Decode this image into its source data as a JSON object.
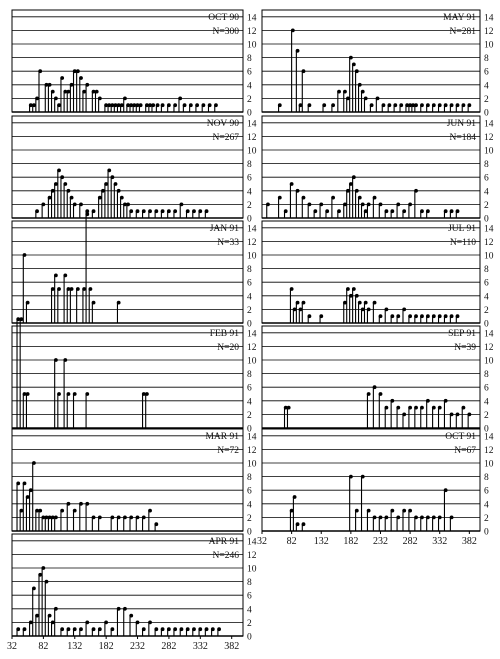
{
  "chart_data": {
    "type": "bar",
    "style": "lollipop",
    "y_ticks": [
      0,
      2,
      4,
      6,
      8,
      10,
      12,
      14
    ],
    "ylim": [
      0,
      15
    ],
    "x_ticks": [
      32,
      82,
      132,
      182,
      232,
      282,
      332,
      382
    ],
    "xlim": [
      32,
      400
    ],
    "grid": true,
    "panels": [
      {
        "title": "OCT 90",
        "n_label": "N=300",
        "column": "left",
        "row": 0,
        "x": [
          60,
          65,
          70,
          75,
          85,
          90,
          95,
          100,
          105,
          110,
          115,
          120,
          125,
          130,
          135,
          140,
          145,
          150,
          160,
          165,
          170,
          180,
          185,
          190,
          195,
          200,
          205,
          210,
          215,
          220,
          225,
          230,
          235,
          245,
          250,
          255,
          262,
          270,
          280,
          290,
          298,
          305,
          315,
          325,
          335,
          345,
          355
        ],
        "y": [
          1,
          1,
          2,
          6,
          4,
          4,
          3,
          2,
          1,
          5,
          3,
          3,
          4,
          6,
          6,
          5,
          3,
          4,
          3,
          3,
          2,
          1,
          1,
          1,
          1,
          1,
          1,
          2,
          1,
          1,
          1,
          1,
          1,
          1,
          1,
          1,
          1,
          1,
          1,
          1,
          2,
          1,
          1,
          1,
          1,
          1,
          1
        ]
      },
      {
        "title": "MAY 91",
        "n_label": "N=281",
        "column": "right",
        "row": 0,
        "x": [
          60,
          82,
          90,
          95,
          100,
          110,
          135,
          150,
          160,
          170,
          175,
          180,
          185,
          190,
          195,
          200,
          205,
          215,
          225,
          235,
          245,
          255,
          265,
          275,
          280,
          285,
          290,
          300,
          310,
          320,
          330,
          340,
          350,
          360,
          370,
          380
        ],
        "y": [
          1,
          12,
          9,
          1,
          6,
          1,
          1,
          1,
          3,
          3,
          2,
          8,
          7,
          6,
          4,
          3,
          2,
          1,
          2,
          1,
          1,
          1,
          1,
          1,
          1,
          1,
          1,
          1,
          1,
          1,
          1,
          1,
          1,
          1,
          1,
          1
        ]
      },
      {
        "title": "NOV 90",
        "n_label": "N=267",
        "column": "left",
        "row": 1,
        "x": [
          70,
          80,
          90,
          95,
          100,
          105,
          110,
          115,
          120,
          125,
          130,
          140,
          150,
          160,
          170,
          175,
          180,
          185,
          190,
          195,
          200,
          205,
          210,
          215,
          220,
          230,
          240,
          250,
          260,
          270,
          280,
          290,
          300,
          310,
          320,
          330,
          340
        ],
        "y": [
          1,
          2,
          3,
          4,
          5,
          7,
          6,
          5,
          4,
          3,
          2,
          2,
          1,
          1,
          3,
          4,
          5,
          7,
          6,
          5,
          4,
          3,
          2,
          2,
          1,
          1,
          1,
          1,
          1,
          1,
          1,
          1,
          2,
          1,
          1,
          1,
          1
        ]
      },
      {
        "title": "JUN 91",
        "n_label": "N=184",
        "column": "right",
        "row": 1,
        "x": [
          40,
          60,
          70,
          80,
          90,
          100,
          110,
          120,
          130,
          140,
          150,
          160,
          170,
          175,
          180,
          185,
          190,
          195,
          200,
          205,
          210,
          220,
          230,
          240,
          250,
          260,
          270,
          280,
          290,
          300,
          310,
          340,
          350,
          360
        ],
        "y": [
          2,
          3,
          1,
          5,
          4,
          3,
          2,
          1,
          2,
          1,
          3,
          1,
          2,
          4,
          5,
          6,
          4,
          3,
          2,
          1,
          2,
          3,
          2,
          1,
          1,
          2,
          1,
          2,
          4,
          1,
          1,
          1,
          1,
          1
        ]
      },
      {
        "title": "JAN 91",
        "n_label": "N=33",
        "column": "left",
        "row": 2,
        "x": [
          50,
          55,
          95,
          100,
          105,
          115,
          120,
          125,
          135,
          145,
          150,
          155,
          160,
          200
        ],
        "y": [
          10,
          3,
          5,
          7,
          5,
          7,
          5,
          5,
          5,
          5,
          16,
          5,
          3,
          3
        ]
      },
      {
        "title": "JUL 91",
        "n_label": "N=110",
        "column": "right",
        "row": 2,
        "x": [
          80,
          85,
          90,
          95,
          100,
          110,
          130,
          170,
          175,
          180,
          185,
          190,
          195,
          200,
          205,
          210,
          220,
          230,
          240,
          250,
          260,
          270,
          280,
          290,
          300,
          310,
          320,
          330,
          340,
          350,
          360
        ],
        "y": [
          5,
          2,
          3,
          2,
          3,
          1,
          1,
          3,
          5,
          4,
          5,
          4,
          3,
          2,
          3,
          2,
          3,
          1,
          2,
          1,
          1,
          2,
          1,
          1,
          1,
          1,
          1,
          1,
          1,
          1,
          1
        ]
      },
      {
        "title": "FEB 91",
        "n_label": "N=20",
        "column": "left",
        "row": 3,
        "x": [
          40,
          45,
          50,
          55,
          100,
          105,
          115,
          120,
          130,
          150,
          240,
          245
        ],
        "y": [
          16,
          16,
          5,
          5,
          10,
          5,
          10,
          5,
          5,
          5,
          5,
          5
        ]
      },
      {
        "title": "SEP 91",
        "n_label": "N=39",
        "column": "right",
        "row": 3,
        "x": [
          70,
          75,
          210,
          220,
          230,
          240,
          250,
          260,
          270,
          280,
          290,
          300,
          310,
          320,
          330,
          340,
          350,
          360,
          370,
          380
        ],
        "y": [
          3,
          3,
          5,
          6,
          5,
          3,
          4,
          3,
          2,
          3,
          3,
          3,
          4,
          3,
          3,
          4,
          2,
          2,
          3,
          2
        ]
      },
      {
        "title": "MAR 91",
        "n_label": "N=72",
        "column": "left",
        "row": 4,
        "x": [
          40,
          45,
          50,
          55,
          60,
          65,
          70,
          75,
          80,
          85,
          90,
          95,
          100,
          110,
          120,
          130,
          140,
          150,
          160,
          170,
          190,
          200,
          210,
          220,
          230,
          240,
          250,
          260
        ],
        "y": [
          7,
          3,
          7,
          5,
          6,
          10,
          3,
          3,
          2,
          2,
          2,
          2,
          2,
          3,
          4,
          3,
          4,
          4,
          2,
          2,
          2,
          2,
          2,
          2,
          2,
          2,
          3,
          1
        ]
      },
      {
        "title": "OCT 91",
        "n_label": "N=67",
        "column": "right",
        "row": 4,
        "x": [
          80,
          85,
          90,
          100,
          180,
          190,
          200,
          210,
          220,
          230,
          240,
          250,
          260,
          270,
          280,
          290,
          300,
          310,
          320,
          330,
          340,
          350
        ],
        "y": [
          3,
          5,
          1,
          1,
          8,
          3,
          8,
          3,
          2,
          2,
          2,
          3,
          2,
          3,
          3,
          2,
          2,
          2,
          2,
          2,
          6,
          2
        ]
      },
      {
        "title": "APR 91",
        "n_label": "N=246",
        "column": "left",
        "row": 5,
        "x": [
          40,
          50,
          60,
          65,
          70,
          75,
          80,
          85,
          90,
          95,
          100,
          110,
          120,
          130,
          140,
          150,
          160,
          170,
          180,
          190,
          200,
          210,
          220,
          230,
          240,
          250,
          260,
          270,
          280,
          290,
          300,
          310,
          320,
          330,
          340,
          350,
          360
        ],
        "y": [
          1,
          1,
          2,
          7,
          3,
          9,
          10,
          8,
          3,
          2,
          4,
          1,
          1,
          1,
          1,
          2,
          1,
          1,
          2,
          1,
          4,
          4,
          3,
          2,
          1,
          2,
          1,
          1,
          1,
          1,
          1,
          1,
          1,
          1,
          1,
          1,
          1
        ]
      }
    ]
  }
}
